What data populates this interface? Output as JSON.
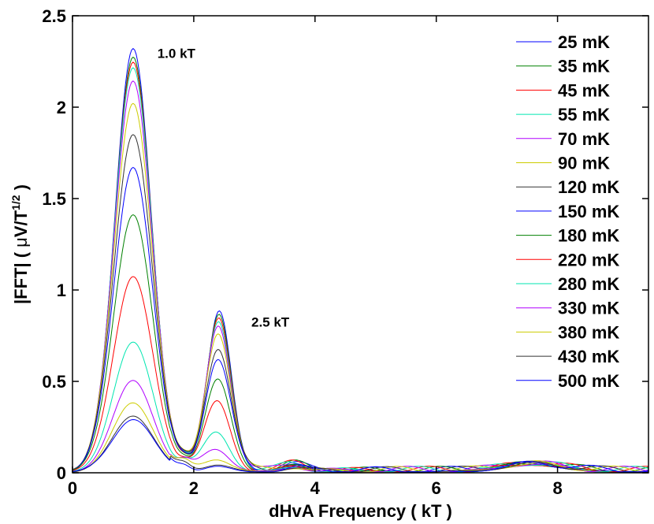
{
  "chart_data": {
    "type": "line",
    "title": "",
    "xlabel": "dHvA Frequency ( kT )",
    "ylabel_prefix": "|FFT| ( ",
    "ylabel_mu": "μ",
    "ylabel_unit": "V/T",
    "ylabel_sup": "1/2",
    "ylabel_suffix": " )",
    "xlim": [
      0,
      9.5
    ],
    "ylim": [
      0,
      2.5
    ],
    "xticks": [
      0,
      2,
      4,
      6,
      8
    ],
    "yticks": [
      0,
      0.5,
      1,
      1.5,
      2,
      2.5
    ],
    "xtick_labels": [
      "0",
      "2",
      "4",
      "6",
      "8"
    ],
    "ytick_labels": [
      "0",
      "0.5",
      "1",
      "1.5",
      "2",
      "2.5"
    ],
    "grid": false,
    "legend_position": "top-right",
    "annotations": [
      {
        "text": "1.0 kT",
        "x": 1.4,
        "y": 2.27
      },
      {
        "text": "2.5 kT",
        "x": 2.95,
        "y": 0.8
      }
    ],
    "series": [
      {
        "name": "25 mK",
        "color": "#0000ff",
        "p1": 2.32,
        "p2": 0.88
      },
      {
        "name": "35 mK",
        "color": "#008000",
        "p1": 2.27,
        "p2": 0.86
      },
      {
        "name": "45 mK",
        "color": "#ff0000",
        "p1": 2.24,
        "p2": 0.84
      },
      {
        "name": "55 mK",
        "color": "#00e6b0",
        "p1": 2.21,
        "p2": 0.82
      },
      {
        "name": "70 mK",
        "color": "#b000ff",
        "p1": 2.14,
        "p2": 0.8
      },
      {
        "name": "90 mK",
        "color": "#cccc00",
        "p1": 2.02,
        "p2": 0.76
      },
      {
        "name": "120 mK",
        "color": "#333333",
        "p1": 1.85,
        "p2": 0.67
      },
      {
        "name": "150 mK",
        "color": "#0000ff",
        "p1": 1.67,
        "p2": 0.6
      },
      {
        "name": "180 mK",
        "color": "#008000",
        "p1": 1.41,
        "p2": 0.48
      },
      {
        "name": "220 mK",
        "color": "#ff0000",
        "p1": 1.07,
        "p2": 0.36
      },
      {
        "name": "280 mK",
        "color": "#00e6b0",
        "p1": 0.71,
        "p2": 0.2
      },
      {
        "name": "330 mK",
        "color": "#b000ff",
        "p1": 0.5,
        "p2": 0.12
      },
      {
        "name": "380 mK",
        "color": "#cccc00",
        "p1": 0.38,
        "p2": 0.07
      },
      {
        "name": "430 mK",
        "color": "#333333",
        "p1": 0.31,
        "p2": 0.04
      },
      {
        "name": "500 mK",
        "color": "#0000ff",
        "p1": 0.29,
        "p2": 0.03
      }
    ]
  }
}
